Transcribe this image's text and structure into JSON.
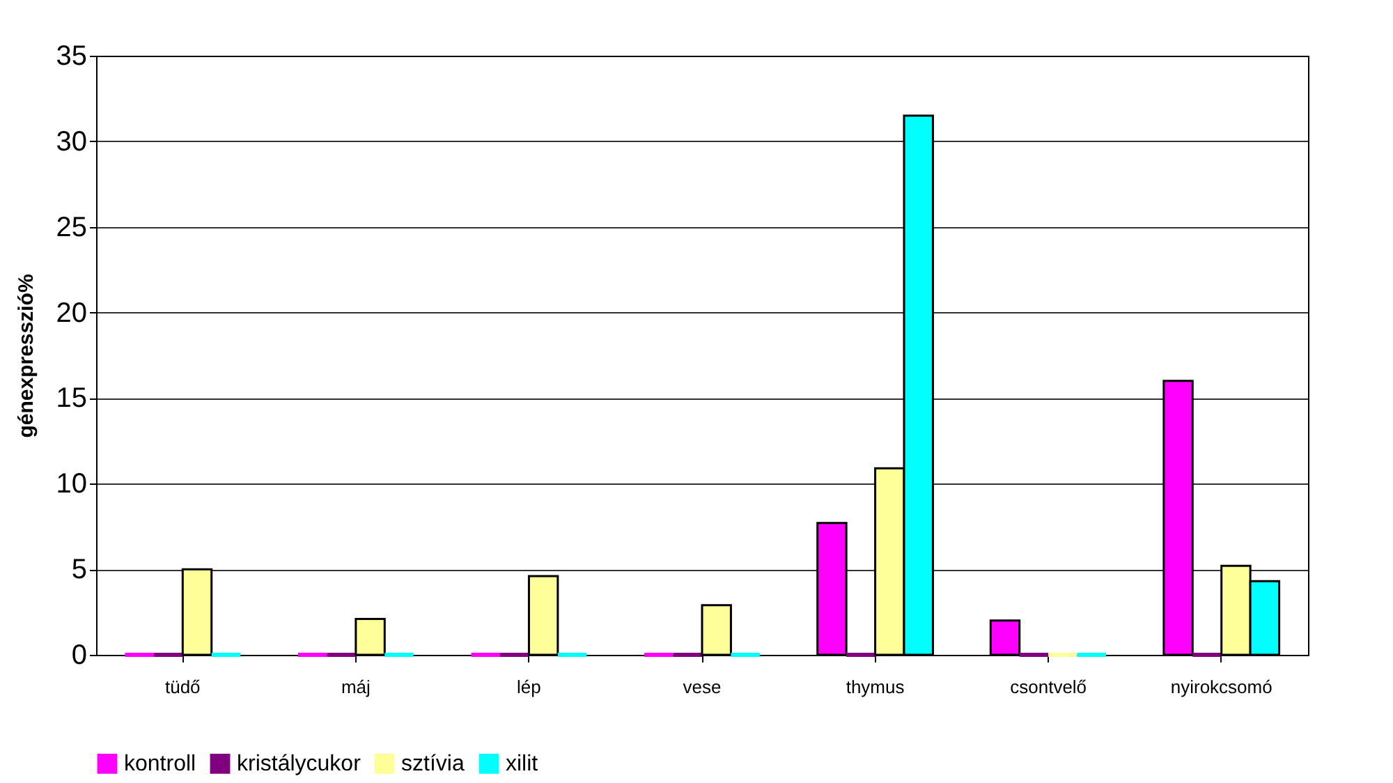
{
  "chart_data": {
    "type": "bar",
    "ylabel": "génexpresszió%",
    "categories": [
      "tüdő",
      "máj",
      "lép",
      "vese",
      "thymus",
      "csontvelő",
      "nyirokcsomó"
    ],
    "series": [
      {
        "name": "kontroll",
        "color": "#ff00ff",
        "values": [
          0,
          0,
          0,
          0,
          7.7,
          2.0,
          16.0
        ]
      },
      {
        "name": "kristálycukor",
        "color": "#800080",
        "values": [
          0,
          0,
          0,
          0,
          0,
          0,
          0
        ]
      },
      {
        "name": "sztívia",
        "color": "#ffff99",
        "values": [
          5.0,
          2.1,
          4.6,
          2.9,
          10.9,
          0,
          5.2
        ]
      },
      {
        "name": "xilit",
        "color": "#00ffff",
        "values": [
          0,
          0,
          0,
          0,
          31.5,
          0,
          4.3
        ]
      }
    ],
    "ylim": [
      0,
      35
    ],
    "yticks": [
      0,
      5,
      10,
      15,
      20,
      25,
      30,
      35
    ],
    "grid": "y",
    "legend": "bottom"
  }
}
